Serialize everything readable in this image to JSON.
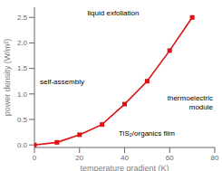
{
  "chart_data": {
    "type": "line",
    "x": [
      0,
      10,
      20,
      30,
      40,
      50,
      60,
      70
    ],
    "values": [
      0.0,
      0.05,
      0.2,
      0.4,
      0.8,
      1.25,
      1.85,
      2.5
    ],
    "color": "#dd1111",
    "marker": "square",
    "xlabel": "temperature gradient (K)",
    "ylabel": "power density (W/m²)",
    "xlim": [
      0,
      80
    ],
    "ylim": [
      -0.05,
      2.7
    ],
    "xticks": [
      0,
      20,
      40,
      60,
      80
    ],
    "yticks": [
      {
        "value": 0.0,
        "label": "0.0"
      },
      0.5,
      {
        "value": 1.0,
        "label": "1.0"
      },
      1.5,
      {
        "value": 2.0,
        "label": "2.0"
      },
      2.5
    ],
    "grid": false,
    "annotations": [
      "liquid exfoliation",
      "self-assembly",
      "TiS₂/organics film",
      "thermoelectric\nmodule"
    ]
  }
}
